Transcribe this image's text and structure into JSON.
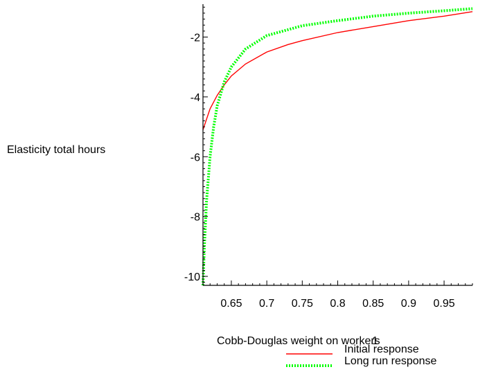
{
  "chart_data": {
    "type": "line",
    "xlabel": "Cobb-Douglas weight on workers",
    "ylabel": "Elasticity total hours",
    "xlim": [
      0.61,
      0.99
    ],
    "ylim": [
      -10.3,
      -0.9
    ],
    "x_ticks": [
      {
        "value": 0.65,
        "label": "0.65"
      },
      {
        "value": 0.7,
        "label": "0.7"
      },
      {
        "value": 0.75,
        "label": "0.75"
      },
      {
        "value": 0.8,
        "label": "0.8"
      },
      {
        "value": 0.85,
        "label": "0.85"
      },
      {
        "value": 0.9,
        "label": "0.9"
      },
      {
        "value": 0.95,
        "label": "0.95"
      }
    ],
    "x_axis_extra_label": "1",
    "y_ticks": [
      {
        "value": -2,
        "label": "-2"
      },
      {
        "value": -4,
        "label": "-4"
      },
      {
        "value": -6,
        "label": "-6"
      },
      {
        "value": -8,
        "label": "-8"
      },
      {
        "value": -10,
        "label": "-10"
      }
    ],
    "legend_position": "bottom-right",
    "series": [
      {
        "name": "Initial response",
        "color": "#ff0000",
        "style": "solid",
        "x": [
          0.61,
          0.62,
          0.63,
          0.64,
          0.65,
          0.67,
          0.7,
          0.73,
          0.75,
          0.8,
          0.85,
          0.9,
          0.95,
          0.99
        ],
        "y": [
          -5.1,
          -4.4,
          -3.95,
          -3.6,
          -3.3,
          -2.9,
          -2.5,
          -2.25,
          -2.12,
          -1.85,
          -1.65,
          -1.45,
          -1.3,
          -1.15
        ]
      },
      {
        "name": "Long run response",
        "color": "#00ff00",
        "style": "dotted",
        "x": [
          0.61,
          0.612,
          0.615,
          0.62,
          0.625,
          0.63,
          0.64,
          0.65,
          0.67,
          0.7,
          0.75,
          0.8,
          0.85,
          0.9,
          0.95,
          0.99
        ],
        "y": [
          -10.3,
          -9.0,
          -7.5,
          -6.0,
          -5.0,
          -4.3,
          -3.5,
          -3.0,
          -2.4,
          -1.95,
          -1.62,
          -1.45,
          -1.3,
          -1.2,
          -1.12,
          -1.05
        ]
      }
    ]
  }
}
